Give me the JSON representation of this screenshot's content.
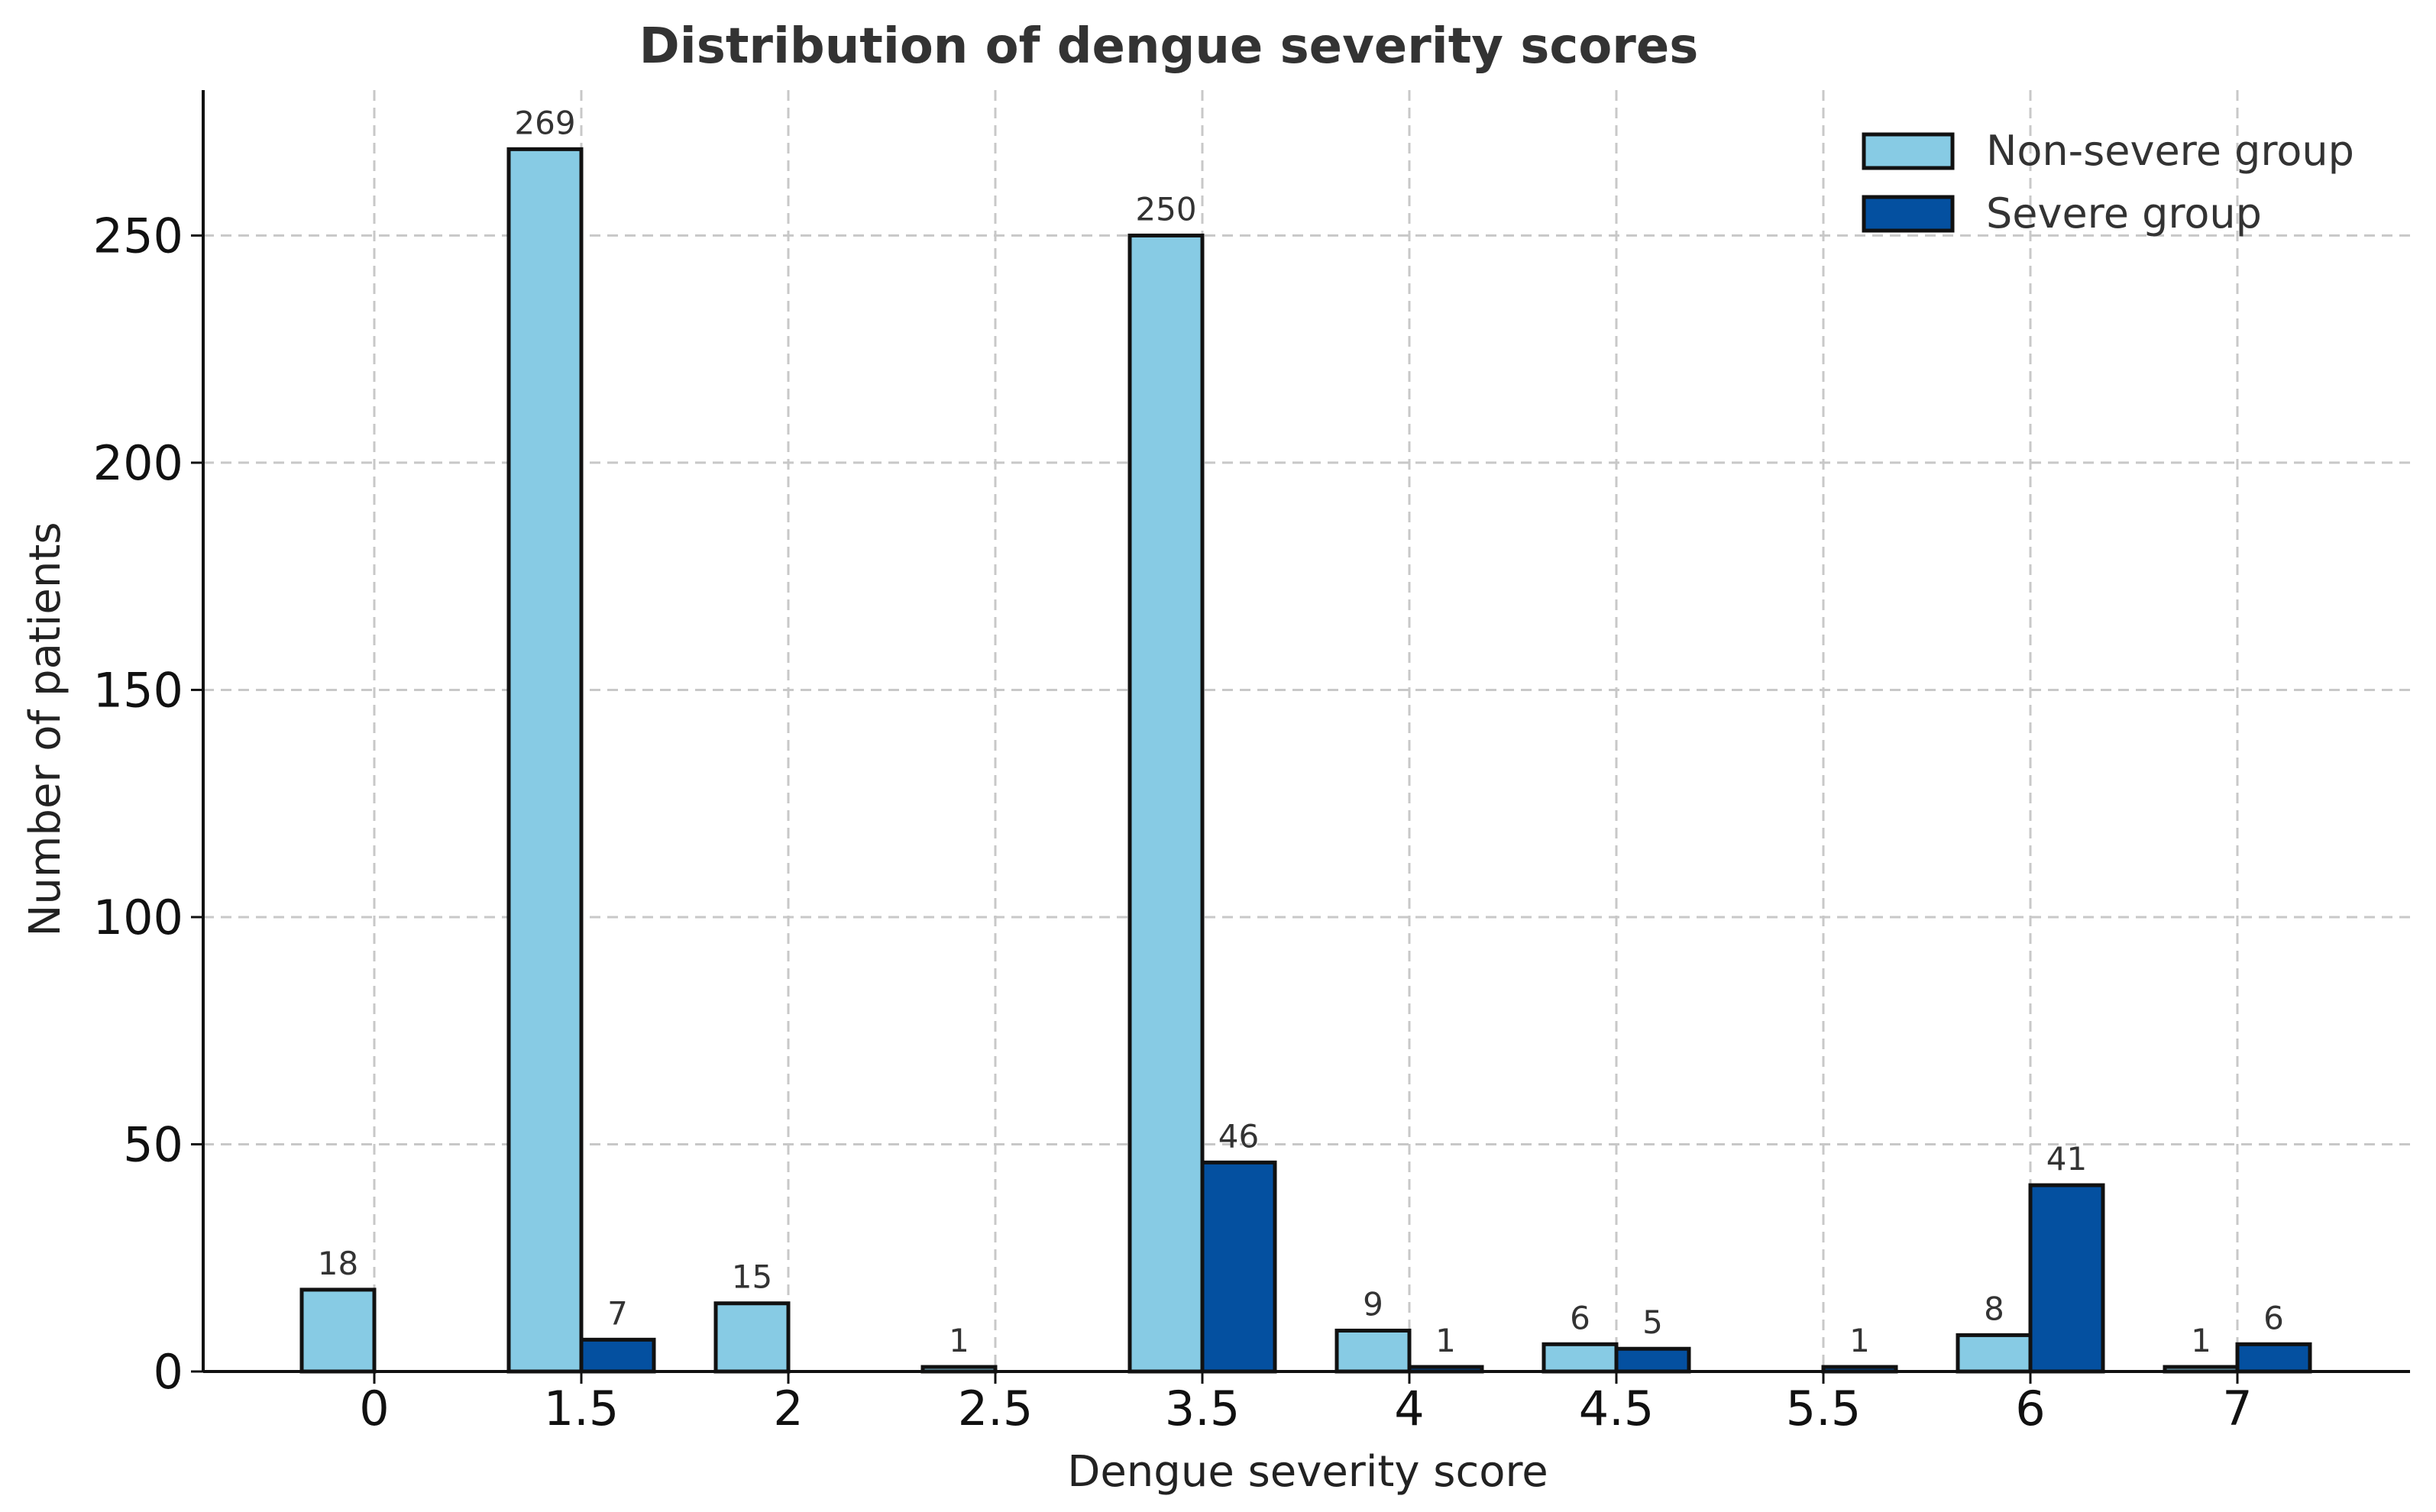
{
  "chart_data": {
    "type": "bar",
    "title": "Distribution of dengue severity scores",
    "xlabel": "Dengue severity score",
    "ylabel": "Number of patients",
    "categories": [
      "0",
      "1.5",
      "2",
      "2.5",
      "3.5",
      "4",
      "4.5",
      "5.5",
      "6",
      "7"
    ],
    "series": [
      {
        "name": "Non-severe group",
        "color": "#87CBE4",
        "values": [
          18,
          269,
          15,
          1,
          250,
          9,
          6,
          0,
          8,
          1
        ],
        "labels": [
          "18",
          "269",
          "15",
          "1",
          "250",
          "9",
          "6",
          "",
          "8",
          "1"
        ]
      },
      {
        "name": "Severe group",
        "color": "#0450A0",
        "values": [
          0,
          7,
          0,
          0,
          46,
          1,
          5,
          1,
          41,
          6
        ],
        "labels": [
          "",
          "7",
          "",
          "",
          "46",
          "1",
          "5",
          "1",
          "41",
          "6"
        ]
      }
    ],
    "yticks": [
      0,
      50,
      100,
      150,
      200,
      250
    ],
    "ylim": [
      0,
      282
    ],
    "grid": true,
    "legend_position": "top-right"
  }
}
